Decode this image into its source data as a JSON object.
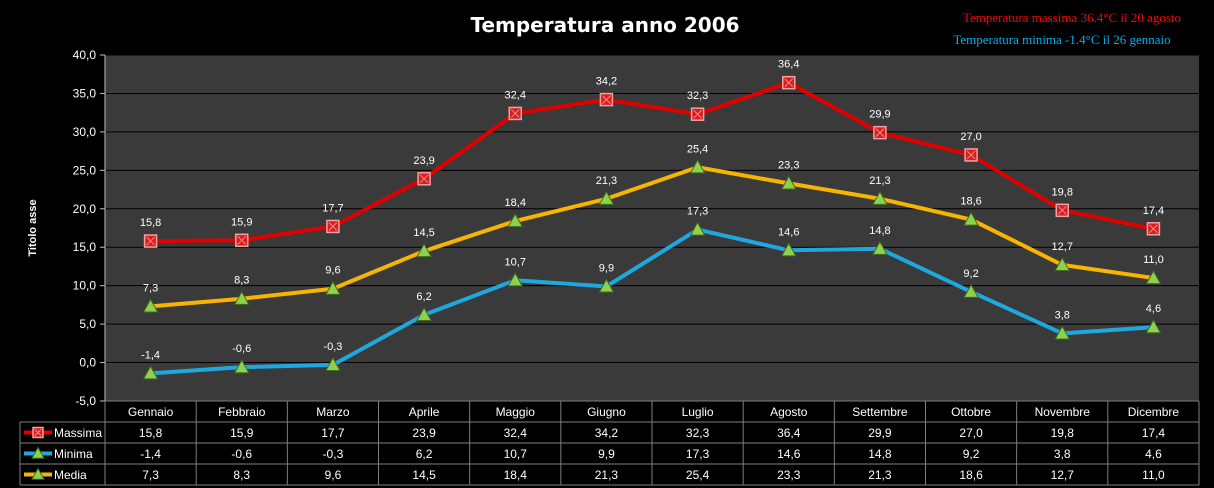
{
  "chart_data": {
    "type": "line",
    "title": "Temperatura anno 2006",
    "annotations": [
      {
        "text": "Temperatura massima 36.4°C il 20 agosto",
        "color": "#ff0000"
      },
      {
        "text": "Temperatura minima -1.4°C il 26 gennaio",
        "color": "#00b0f0"
      }
    ],
    "ylabel": "Titolo asse",
    "xlabel": "",
    "ylim": [
      -5,
      40
    ],
    "yticks": [
      "-5,0",
      "0,0",
      "5,0",
      "10,0",
      "15,0",
      "20,0",
      "25,0",
      "30,0",
      "35,0",
      "40,0"
    ],
    "grid": true,
    "legend": "data-table",
    "categories": [
      "Gennaio",
      "Febbraio",
      "Marzo",
      "Aprile",
      "Maggio",
      "Giugno",
      "Luglio",
      "Agosto",
      "Settembre",
      "Ottobre",
      "Novembre",
      "Dicembre"
    ],
    "series": [
      {
        "name": "Massima",
        "color": "#e00000",
        "marker": "square",
        "values": [
          15.8,
          15.9,
          17.7,
          23.9,
          32.4,
          34.2,
          32.3,
          36.4,
          29.9,
          27.0,
          19.8,
          17.4
        ]
      },
      {
        "name": "Minima",
        "color": "#1fa8e0",
        "marker": "triangle",
        "values": [
          -1.4,
          -0.6,
          -0.3,
          6.2,
          10.7,
          9.9,
          17.3,
          14.6,
          14.8,
          9.2,
          3.8,
          4.6
        ]
      },
      {
        "name": "Media",
        "color": "#f7b400",
        "marker": "triangle",
        "values": [
          7.3,
          8.3,
          9.6,
          14.5,
          18.4,
          21.3,
          25.4,
          23.3,
          21.3,
          18.6,
          12.7,
          11.0
        ]
      }
    ],
    "colors": {
      "plot_background": "#3a3a3a",
      "grid": "#000000",
      "table_lines": "#7f7f7f",
      "marker_fill_triangle": "#8fd14f"
    }
  }
}
